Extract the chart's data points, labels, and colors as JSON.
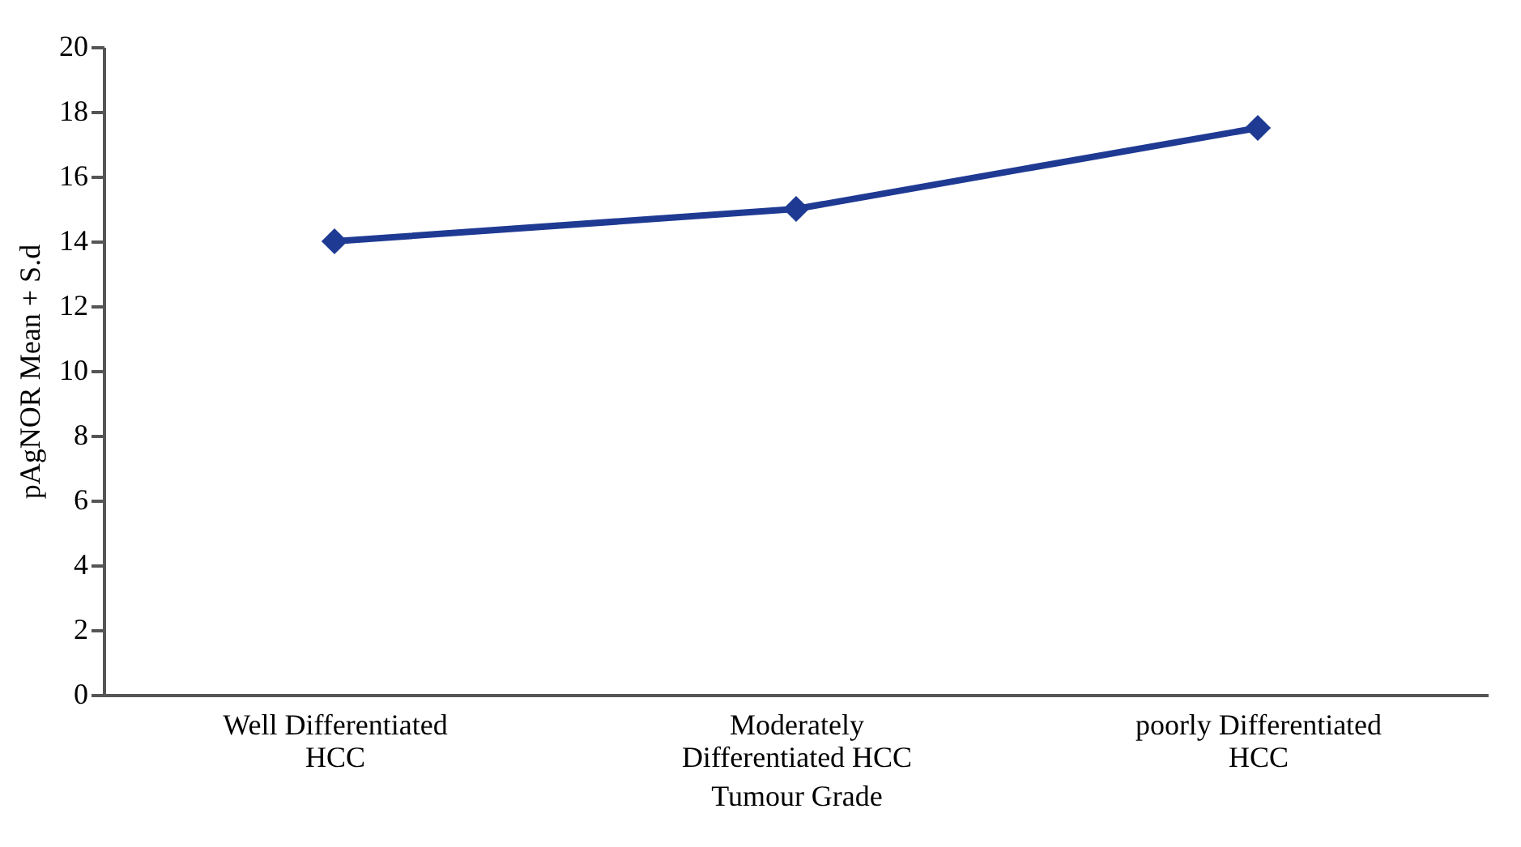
{
  "chart_data": {
    "type": "line",
    "xlabel": "Tumour Grade",
    "ylabel": "pAgNOR Mean + S.d",
    "categories": [
      "Well Differentiated HCC",
      "Moderately Differentiated HCC",
      "poorly Differentiated HCC"
    ],
    "series": [
      {
        "color": "#1f3a93",
        "values": [
          14,
          15,
          17.5
        ]
      }
    ],
    "ylim": [
      0,
      20
    ],
    "yticks": [
      0,
      2,
      4,
      6,
      8,
      10,
      12,
      14,
      16,
      18,
      20
    ],
    "grid": false,
    "marker": "diamond",
    "line_style": "solid"
  }
}
